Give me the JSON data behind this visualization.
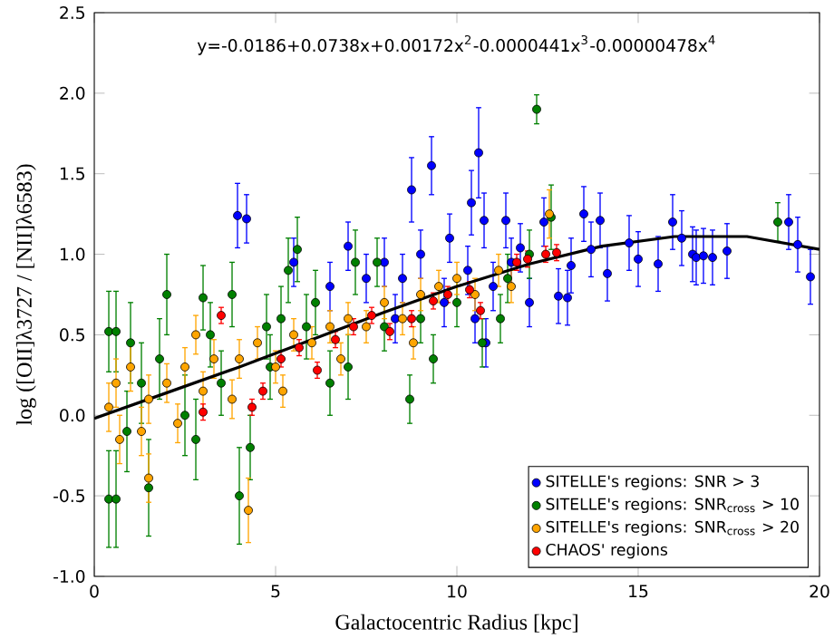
{
  "chart_data": {
    "type": "scatter",
    "xlabel": "Galactocentric Radius [kpc]",
    "ylabel": "log ([OII]λ3727 / [NII]λ6583)",
    "annotations": [
      "y=-0.0186+0.0738x+0.00172x$^{2}$-0.0000441x$^{3}$-0.00000478x$^{4}$"
    ],
    "xlim": [
      0,
      20
    ],
    "ylim": [
      -1.0,
      2.5
    ],
    "xticks": [
      0,
      5,
      10,
      15,
      20
    ],
    "yticks": [
      {
        "value": -1.0,
        "label": "-1.0"
      },
      {
        "value": -0.5,
        "label": "-0.5"
      },
      {
        "value": 0.0,
        "label": "0.0"
      },
      {
        "value": 0.5,
        "label": "0.5"
      },
      {
        "value": 1.0,
        "label": "1.0"
      },
      {
        "value": 1.5,
        "label": "1.5"
      },
      {
        "value": 2.0,
        "label": "2.0"
      },
      {
        "value": 2.5,
        "label": "2.5"
      }
    ],
    "marker": "circle",
    "legend": "bottom right",
    "series": [
      {
        "name": "SITELLE's regions: SNR > 3",
        "color": "#0000ff",
        "x": [
          3.95,
          8.75,
          9.3,
          10.6,
          10.4,
          10.75,
          11.35,
          13.5,
          13.95,
          13.7,
          14.15,
          13.15,
          13.05,
          12.8,
          14.75,
          15.0,
          15.55,
          15.95,
          16.2,
          16.5,
          16.6,
          16.8,
          17.05,
          17.45,
          19.15,
          19.4,
          19.75,
          12.4,
          11.75,
          8.0,
          8.5,
          9.0,
          9.65,
          10.3,
          10.5,
          11.0,
          11.5,
          9.8,
          8.3,
          10.8,
          12.0,
          7.5,
          6.5,
          5.5,
          7.0,
          4.2
        ],
        "values": [
          1.24,
          1.4,
          1.55,
          1.63,
          1.32,
          1.21,
          1.21,
          1.25,
          1.21,
          1.03,
          0.88,
          0.93,
          0.73,
          0.74,
          1.07,
          0.97,
          0.94,
          1.2,
          1.1,
          1.0,
          0.98,
          0.99,
          0.98,
          1.02,
          1.2,
          1.06,
          0.86,
          1.2,
          1.04,
          0.95,
          0.85,
          1.0,
          0.7,
          0.9,
          0.6,
          0.8,
          0.95,
          1.1,
          0.6,
          0.45,
          0.7,
          0.85,
          0.8,
          0.95,
          1.05,
          1.22
        ],
        "errors": [
          0.2,
          0.2,
          0.18,
          0.28,
          0.2,
          0.17,
          0.17,
          0.17,
          0.17,
          0.17,
          0.17,
          0.17,
          0.17,
          0.17,
          0.17,
          0.17,
          0.17,
          0.17,
          0.17,
          0.17,
          0.17,
          0.17,
          0.17,
          0.17,
          0.17,
          0.17,
          0.17,
          0.15,
          0.15,
          0.15,
          0.15,
          0.15,
          0.15,
          0.15,
          0.15,
          0.15,
          0.15,
          0.15,
          0.15,
          0.15,
          0.15,
          0.15,
          0.15,
          0.15,
          0.15,
          0.15
        ]
      },
      {
        "name": "SITELLE's regions: SNR$_{cross}$ > 10",
        "color": "#008000",
        "x": [
          0.4,
          0.6,
          0.4,
          0.6,
          1.5,
          1.3,
          2.0,
          3.0,
          3.8,
          5.6,
          5.35,
          6.1,
          4.0,
          4.3,
          7.2,
          8.7,
          10.7,
          0.9,
          2.5,
          3.5,
          4.85,
          5.85,
          7.0,
          8.0,
          9.0,
          10.0,
          11.4,
          12.0,
          12.6,
          11.2,
          9.35,
          1.8,
          2.8,
          4.75,
          6.5,
          18.85,
          5.15,
          3.2,
          1.0,
          7.8,
          12.2
        ],
        "values": [
          0.52,
          0.52,
          -0.52,
          -0.52,
          -0.45,
          0.2,
          0.75,
          0.73,
          0.75,
          1.03,
          0.9,
          0.7,
          -0.5,
          -0.2,
          0.95,
          0.1,
          0.45,
          -0.1,
          0.0,
          0.2,
          0.3,
          0.55,
          0.3,
          0.55,
          0.6,
          0.7,
          0.85,
          1.0,
          1.23,
          0.6,
          0.35,
          0.35,
          -0.15,
          0.55,
          0.2,
          1.2,
          0.6,
          0.5,
          0.45,
          0.95,
          1.9
        ],
        "errors": [
          0.25,
          0.25,
          0.3,
          0.3,
          0.3,
          0.25,
          0.25,
          0.2,
          0.2,
          0.2,
          0.2,
          0.2,
          0.3,
          0.2,
          0.2,
          0.15,
          0.15,
          0.25,
          0.25,
          0.2,
          0.2,
          0.2,
          0.2,
          0.15,
          0.15,
          0.15,
          0.15,
          0.15,
          0.2,
          0.15,
          0.15,
          0.25,
          0.25,
          0.2,
          0.2,
          0.12,
          0.2,
          0.2,
          0.25,
          0.15,
          0.09
        ]
      },
      {
        "name": "SITELLE's regions: SNR$_{cross}$ > 20",
        "color": "#ffa500",
        "x": [
          0.4,
          0.6,
          0.7,
          1.3,
          1.5,
          2.0,
          2.3,
          2.5,
          3.0,
          3.3,
          1.5,
          4.25,
          4.0,
          4.5,
          5.0,
          5.5,
          6.0,
          6.5,
          7.0,
          7.5,
          8.0,
          8.5,
          9.0,
          9.5,
          10.0,
          10.5,
          11.15,
          11.5,
          12.55,
          3.8,
          5.2,
          6.8,
          2.8,
          1.0,
          8.8
        ],
        "values": [
          0.05,
          0.2,
          -0.15,
          -0.1,
          0.1,
          0.2,
          -0.05,
          0.3,
          0.15,
          0.35,
          -0.39,
          -0.59,
          0.35,
          0.45,
          0.3,
          0.5,
          0.45,
          0.55,
          0.6,
          0.55,
          0.7,
          0.6,
          0.75,
          0.8,
          0.85,
          0.75,
          0.9,
          0.8,
          1.25,
          0.1,
          0.15,
          0.35,
          0.5,
          0.3,
          0.45
        ],
        "errors": [
          0.15,
          0.15,
          0.15,
          0.15,
          0.15,
          0.12,
          0.12,
          0.12,
          0.12,
          0.12,
          0.15,
          0.2,
          0.12,
          0.1,
          0.1,
          0.1,
          0.1,
          0.1,
          0.1,
          0.1,
          0.1,
          0.1,
          0.1,
          0.1,
          0.1,
          0.1,
          0.1,
          0.1,
          0.15,
          0.12,
          0.1,
          0.1,
          0.12,
          0.15,
          0.1
        ]
      },
      {
        "name": "CHAOS' regions",
        "color": "#ff0000",
        "x": [
          3.5,
          3.0,
          4.35,
          4.65,
          5.15,
          5.65,
          6.15,
          6.65,
          7.15,
          7.65,
          8.15,
          8.75,
          9.35,
          9.75,
          10.35,
          10.65,
          11.65,
          11.95,
          12.45,
          12.75
        ],
        "values": [
          0.62,
          0.02,
          0.05,
          0.15,
          0.35,
          0.42,
          0.28,
          0.47,
          0.55,
          0.62,
          0.52,
          0.6,
          0.71,
          0.75,
          0.78,
          0.65,
          0.95,
          0.97,
          1.0,
          1.01
        ],
        "errors": [
          0.05,
          0.05,
          0.05,
          0.05,
          0.05,
          0.05,
          0.05,
          0.05,
          0.05,
          0.05,
          0.05,
          0.05,
          0.05,
          0.05,
          0.05,
          0.05,
          0.05,
          0.05,
          0.05,
          0.05
        ]
      },
      {
        "type": "line",
        "marker": "none",
        "color": "#000000",
        "x": [
          0,
          2,
          4,
          6,
          8,
          10,
          12,
          14,
          16,
          18,
          20
        ],
        "values": [
          -0.02,
          0.14,
          0.3,
          0.47,
          0.64,
          0.8,
          0.94,
          1.05,
          1.11,
          1.11,
          1.03
        ]
      }
    ]
  }
}
